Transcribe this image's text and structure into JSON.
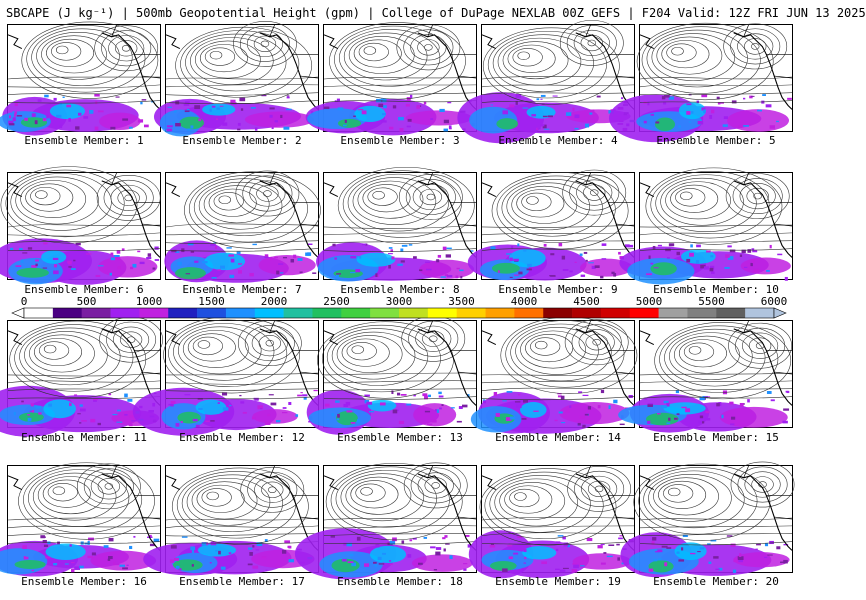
{
  "header": {
    "title": "SBCAPE (J kg⁻¹) | 500mb Geopotential Height (gpm) | College of DuPage NEXLAB 00Z GEFS | F204 Valid: 12Z FRI JUN 13 2025"
  },
  "colorbar": {
    "tick_labels": [
      "0",
      "500",
      "1000",
      "1500",
      "2000",
      "2500",
      "3000",
      "3500",
      "4000",
      "4500",
      "5000",
      "5500",
      "6000"
    ],
    "colors": [
      "#ffffff",
      "#4b0082",
      "#7a1fa2",
      "#a020f0",
      "#c020e0",
      "#2020c0",
      "#1e50e0",
      "#1e90ff",
      "#00bfff",
      "#20c0a0",
      "#20c060",
      "#40d040",
      "#80e040",
      "#c0e020",
      "#ffff00",
      "#ffd000",
      "#ffa000",
      "#ff7000",
      "#8b0000",
      "#b00000",
      "#d00000",
      "#ff0000",
      "#a0a0a0",
      "#808080",
      "#606060",
      "#b0c4de"
    ]
  },
  "members": [
    {
      "caption": "Ensemble Member: 1"
    },
    {
      "caption": "Ensemble Member: 2"
    },
    {
      "caption": "Ensemble Member: 3"
    },
    {
      "caption": "Ensemble Member: 4"
    },
    {
      "caption": "Ensemble Member: 5"
    },
    {
      "caption": "Ensemble Member: 6"
    },
    {
      "caption": "Ensemble Member: 7"
    },
    {
      "caption": "Ensemble Member: 8"
    },
    {
      "caption": "Ensemble Member: 9"
    },
    {
      "caption": "Ensemble Member: 10"
    },
    {
      "caption": "Ensemble Member: 11"
    },
    {
      "caption": "Ensemble Member: 12"
    },
    {
      "caption": "Ensemble Member: 13"
    },
    {
      "caption": "Ensemble Member: 14"
    },
    {
      "caption": "Ensemble Member: 15"
    },
    {
      "caption": "Ensemble Member: 16"
    },
    {
      "caption": "Ensemble Member: 17"
    },
    {
      "caption": "Ensemble Member: 18"
    },
    {
      "caption": "Ensemble Member: 19"
    },
    {
      "caption": "Ensemble Member: 20"
    }
  ]
}
